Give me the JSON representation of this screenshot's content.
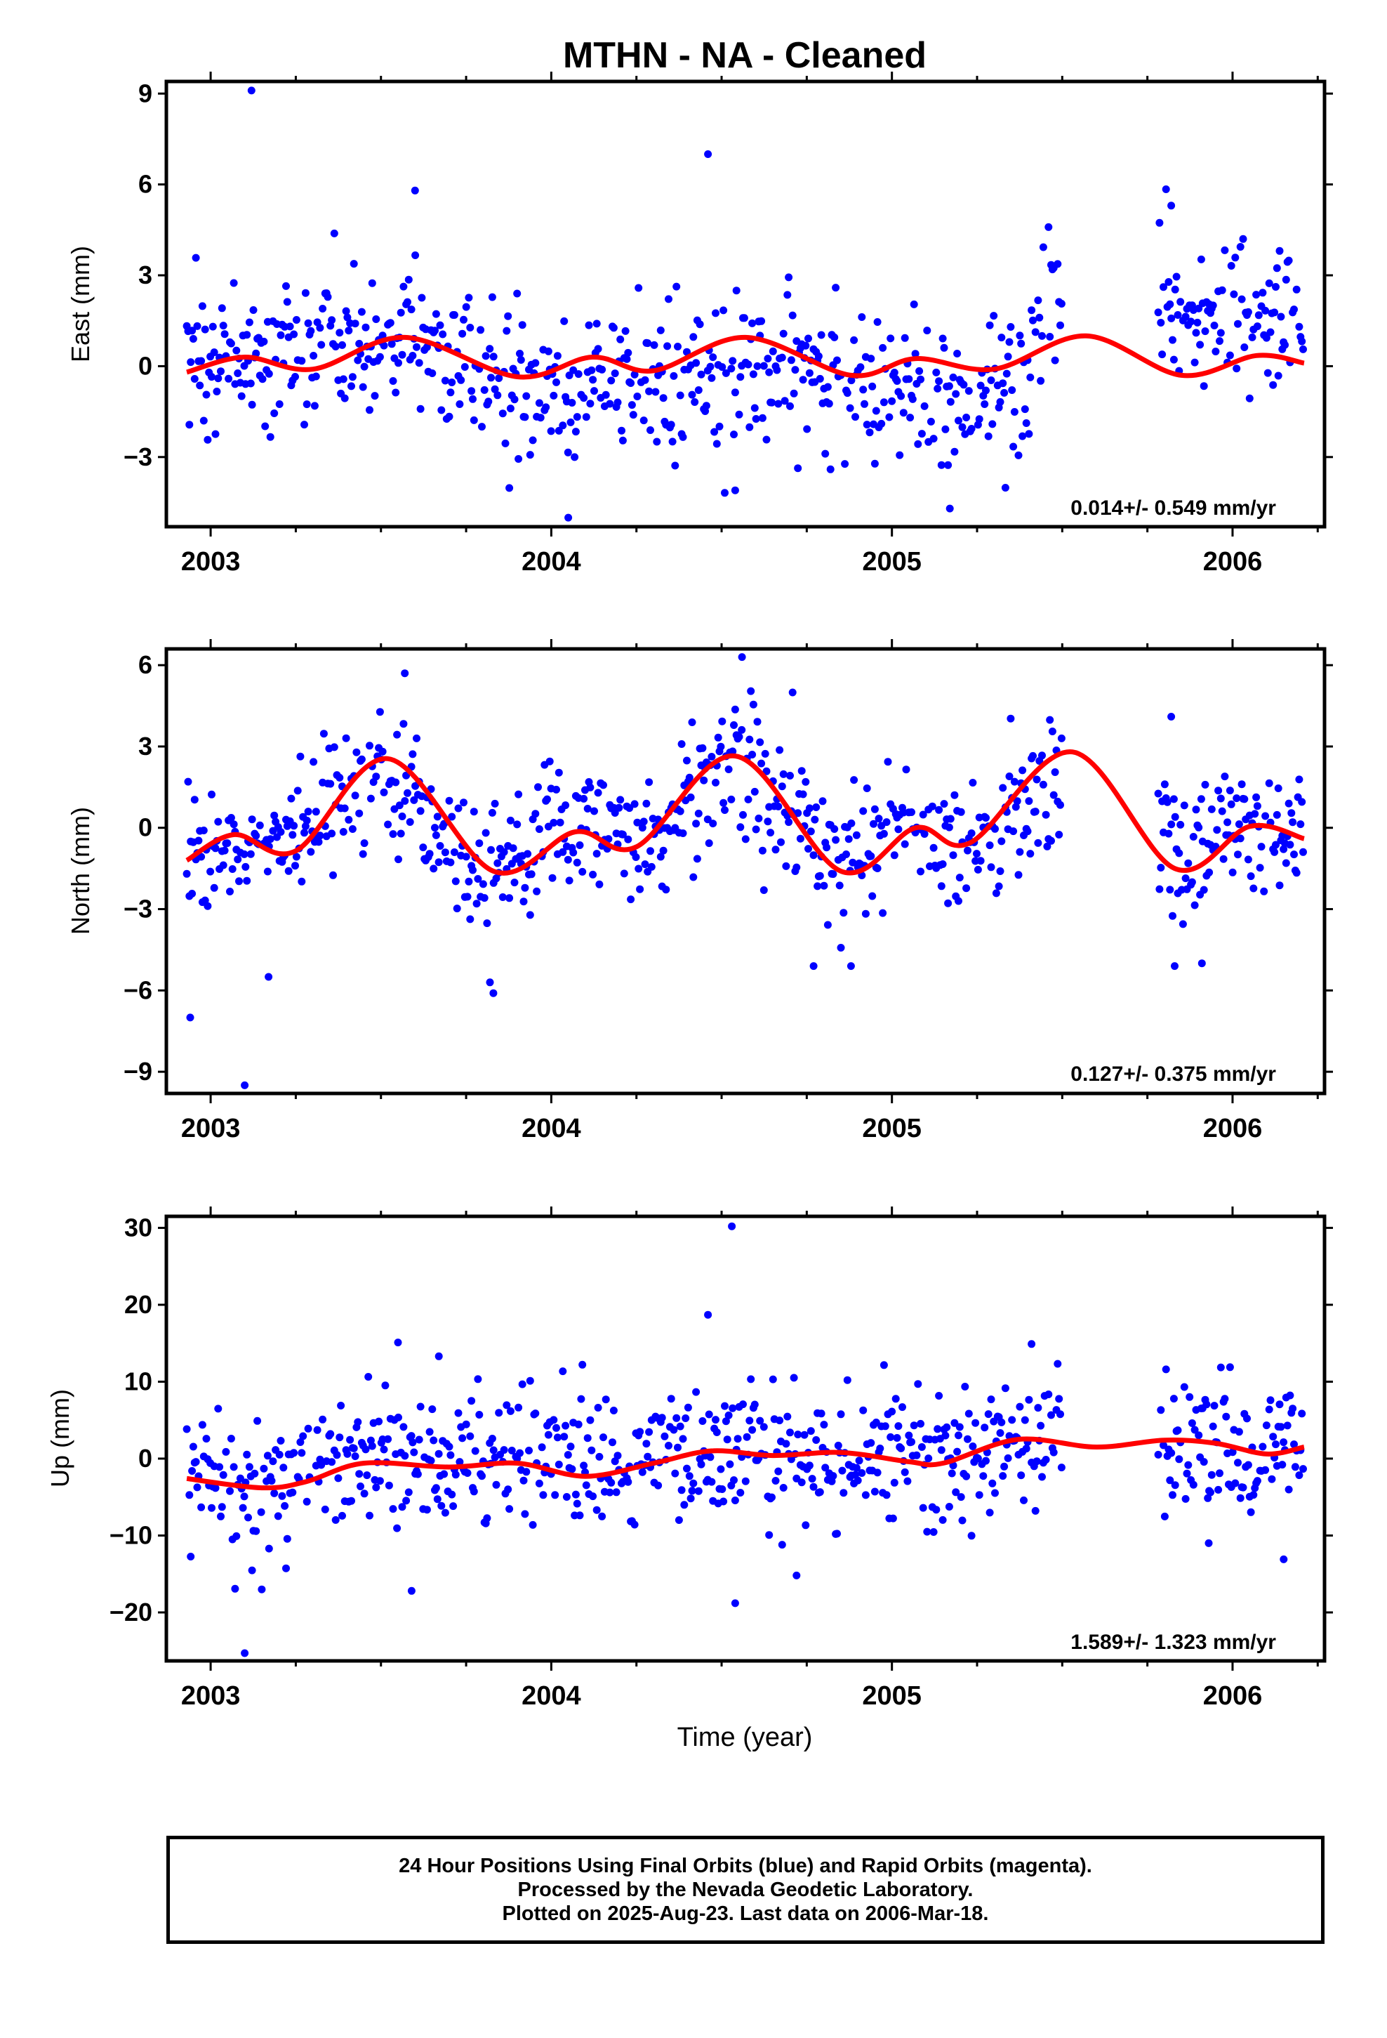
{
  "title": "MTHN  - NA - Cleaned",
  "xlabel": "Time (year)",
  "colors": {
    "points": "#0000ff",
    "fit": "#ff0000",
    "axis": "#000000"
  },
  "footer": {
    "line1": "24 Hour Positions Using Final Orbits (blue) and Rapid Orbits (magenta).",
    "line2": "Processed by the Nevada Geodetic Laboratory.",
    "line3": "Plotted on 2025-Aug-23. Last data on 2006-Mar-18."
  },
  "chart_data": [
    {
      "type": "scatter",
      "component": "East",
      "ylabel": "East (mm)",
      "xlim": [
        2002.87,
        2006.27
      ],
      "ylim": [
        -5.3,
        9.4
      ],
      "xticks": [
        2003,
        2004,
        2005,
        2006
      ],
      "yticks": [
        -3,
        0,
        3,
        6,
        9
      ],
      "rate": "0.014+/- 0.549 mm/yr",
      "point_noise": 1.3,
      "trend_points": [
        [
          2002.93,
          -0.1
        ],
        [
          2003.2,
          0.4
        ],
        [
          2003.45,
          0.6
        ],
        [
          2003.7,
          0.9
        ],
        [
          2003.95,
          -1.0
        ],
        [
          2004.2,
          -0.3
        ],
        [
          2004.5,
          -0.4
        ],
        [
          2004.7,
          0.1
        ],
        [
          2004.95,
          -0.8
        ],
        [
          2005.1,
          -0.9
        ],
        [
          2005.2,
          -1.0
        ],
        [
          2005.4,
          -0.7
        ],
        [
          2005.48,
          2.8
        ],
        [
          2005.8,
          2.0
        ],
        [
          2006.0,
          1.6
        ],
        [
          2006.21,
          1.5
        ]
      ],
      "outliers": [
        [
          2003.12,
          9.1
        ],
        [
          2004.46,
          7.0
        ],
        [
          2003.6,
          5.8
        ],
        [
          2005.82,
          5.3
        ],
        [
          2004.05,
          -5.0
        ],
        [
          2005.17,
          -4.7
        ],
        [
          2004.54,
          -4.1
        ]
      ],
      "fit": [
        [
          2002.93,
          -0.2
        ],
        [
          2003.1,
          0.3
        ],
        [
          2003.3,
          -0.1
        ],
        [
          2003.57,
          0.95
        ],
        [
          2003.9,
          -0.35
        ],
        [
          2004.12,
          0.3
        ],
        [
          2004.3,
          -0.15
        ],
        [
          2004.57,
          0.95
        ],
        [
          2004.88,
          -0.3
        ],
        [
          2005.07,
          0.25
        ],
        [
          2005.3,
          -0.1
        ],
        [
          2005.57,
          1.0
        ],
        [
          2005.85,
          -0.3
        ],
        [
          2006.07,
          0.35
        ],
        [
          2006.21,
          0.1
        ]
      ]
    },
    {
      "type": "scatter",
      "component": "North",
      "ylabel": "North (mm)",
      "xlim": [
        2002.87,
        2006.27
      ],
      "ylim": [
        -9.8,
        6.6
      ],
      "xticks": [
        2003,
        2004,
        2005,
        2006
      ],
      "yticks": [
        -9,
        -6,
        -3,
        0,
        3,
        6
      ],
      "rate": "0.127+/- 0.375 mm/yr",
      "point_noise": 1.2,
      "trend_points": [
        [
          2002.93,
          -1.3
        ],
        [
          2003.2,
          -0.5
        ],
        [
          2003.5,
          2.5
        ],
        [
          2003.8,
          -1.8
        ],
        [
          2004.1,
          0.5
        ],
        [
          2004.3,
          -0.5
        ],
        [
          2004.55,
          2.8
        ],
        [
          2004.85,
          -1.5
        ],
        [
          2005.05,
          0.2
        ],
        [
          2005.25,
          -0.5
        ],
        [
          2005.5,
          1.8
        ],
        [
          2005.85,
          -1.0
        ],
        [
          2006.05,
          0.2
        ],
        [
          2006.21,
          -0.3
        ]
      ],
      "outliers": [
        [
          2003.1,
          -9.5
        ],
        [
          2002.94,
          -7.0
        ],
        [
          2003.57,
          5.7
        ],
        [
          2004.56,
          6.3
        ],
        [
          2003.83,
          -6.1
        ],
        [
          2003.82,
          -5.7
        ],
        [
          2003.17,
          -5.5
        ],
        [
          2004.77,
          -5.1
        ],
        [
          2004.88,
          -5.1
        ],
        [
          2005.83,
          -5.1
        ],
        [
          2005.91,
          -5.0
        ],
        [
          2005.82,
          4.1
        ]
      ],
      "fit": [
        [
          2002.93,
          -1.2
        ],
        [
          2003.07,
          -0.25
        ],
        [
          2003.25,
          -0.85
        ],
        [
          2003.52,
          2.55
        ],
        [
          2003.83,
          -1.6
        ],
        [
          2004.07,
          -0.15
        ],
        [
          2004.25,
          -0.7
        ],
        [
          2004.54,
          2.65
        ],
        [
          2004.85,
          -1.6
        ],
        [
          2005.07,
          0.0
        ],
        [
          2005.23,
          -0.55
        ],
        [
          2005.53,
          2.8
        ],
        [
          2005.83,
          -1.5
        ],
        [
          2006.05,
          0.05
        ],
        [
          2006.21,
          -0.4
        ]
      ]
    },
    {
      "type": "scatter",
      "component": "Up",
      "ylabel": "Up (mm)",
      "xlim": [
        2002.87,
        2006.27
      ],
      "ylim": [
        -26.3,
        31.5
      ],
      "xticks": [
        2003,
        2004,
        2005,
        2006
      ],
      "yticks": [
        -20,
        -10,
        0,
        10,
        20,
        30
      ],
      "rate": "1.589+/- 1.323 mm/yr",
      "point_noise": 4.5,
      "trend_points": [
        [
          2002.93,
          -2.5
        ],
        [
          2003.2,
          -4.5
        ],
        [
          2003.5,
          0.5
        ],
        [
          2003.8,
          -0.5
        ],
        [
          2004.05,
          0.5
        ],
        [
          2004.3,
          0.5
        ],
        [
          2004.55,
          0.5
        ],
        [
          2004.8,
          0.5
        ],
        [
          2005.1,
          0.0
        ],
        [
          2005.2,
          -1.0
        ],
        [
          2005.45,
          3.0
        ],
        [
          2005.85,
          2.5
        ],
        [
          2006.21,
          1.0
        ]
      ],
      "outliers": [
        [
          2004.53,
          30.2
        ],
        [
          2004.46,
          18.7
        ],
        [
          2003.1,
          -25.3
        ],
        [
          2004.54,
          -18.8
        ],
        [
          2003.59,
          -17.2
        ],
        [
          2004.72,
          -15.2
        ],
        [
          2005.93,
          -11.0
        ],
        [
          2006.15,
          -13.1
        ],
        [
          2005.41,
          14.9
        ],
        [
          2003.55,
          15.1
        ],
        [
          2003.15,
          -17.0
        ],
        [
          2003.67,
          13.3
        ]
      ],
      "fit": [
        [
          2002.93,
          -2.6
        ],
        [
          2003.15,
          -3.8
        ],
        [
          2003.28,
          -3.0
        ],
        [
          2003.45,
          -0.6
        ],
        [
          2003.7,
          -1.1
        ],
        [
          2003.9,
          -0.6
        ],
        [
          2004.1,
          -2.3
        ],
        [
          2004.3,
          -0.6
        ],
        [
          2004.47,
          1.0
        ],
        [
          2004.65,
          0.4
        ],
        [
          2004.85,
          0.8
        ],
        [
          2005.05,
          -0.4
        ],
        [
          2005.15,
          -0.6
        ],
        [
          2005.37,
          2.5
        ],
        [
          2005.6,
          1.5
        ],
        [
          2005.8,
          2.4
        ],
        [
          2005.95,
          2.0
        ],
        [
          2006.1,
          0.6
        ],
        [
          2006.21,
          1.5
        ]
      ]
    }
  ]
}
